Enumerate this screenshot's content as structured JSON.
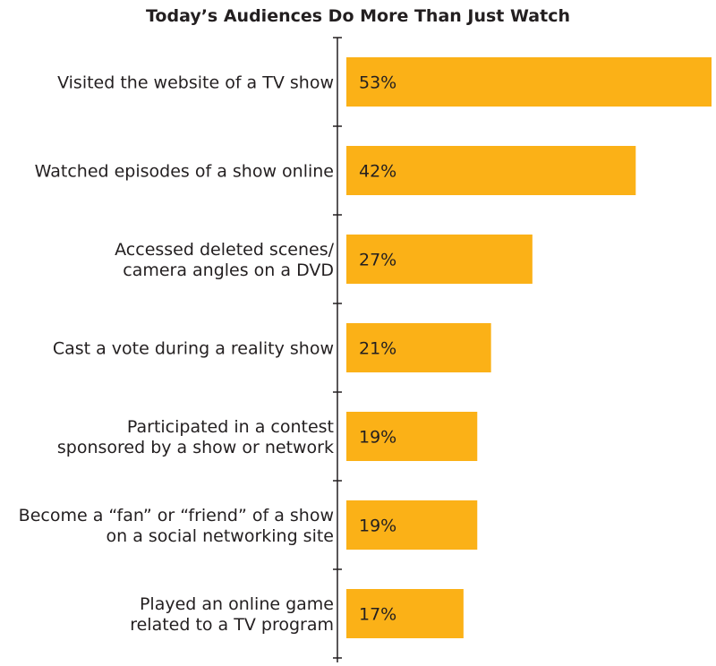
{
  "chart_data": {
    "type": "bar",
    "orientation": "horizontal",
    "title": "Today’s Audiences Do More Than Just Watch",
    "categories": [
      [
        "Visited the website of a TV show"
      ],
      [
        "Watched episodes of a show online"
      ],
      [
        "Accessed deleted scenes/",
        "camera angles on a DVD"
      ],
      [
        "Cast a vote during a reality show"
      ],
      [
        "Participated in a contest",
        "sponsored by a show or network"
      ],
      [
        "Become a “fan” or “friend” of a show",
        "on a social networking site"
      ],
      [
        "Played an online game",
        "related to a TV program"
      ]
    ],
    "values": [
      53,
      42,
      27,
      21,
      19,
      19,
      17
    ],
    "value_labels": [
      "53%",
      "42%",
      "27%",
      "21%",
      "19%",
      "19%",
      "17%"
    ],
    "xlim": [
      0,
      53
    ],
    "grid": false,
    "bar_color": "#FBB117",
    "text_color": "#231F20"
  }
}
